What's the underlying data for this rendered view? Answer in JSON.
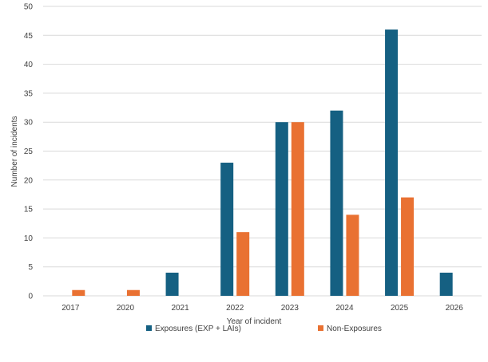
{
  "chart_data": {
    "type": "bar",
    "title": "",
    "xlabel": "Year of incident",
    "ylabel": "Number of incidents",
    "categories": [
      "2017",
      "2020",
      "2021",
      "2022",
      "2023",
      "2024",
      "2025",
      "2026"
    ],
    "series": [
      {
        "name": "Exposures (EXP + LAIs)",
        "color": "#156082",
        "values": [
          0,
          0,
          4,
          23,
          30,
          32,
          46,
          4
        ]
      },
      {
        "name": "Non-Exposures",
        "color": "#e97132",
        "values": [
          1,
          1,
          0,
          11,
          30,
          14,
          17,
          0
        ]
      }
    ],
    "ylim": [
      0,
      50
    ],
    "yticks": [
      0,
      5,
      10,
      15,
      20,
      25,
      30,
      35,
      40,
      45,
      50
    ],
    "grid": true,
    "legend_position": "bottom"
  }
}
